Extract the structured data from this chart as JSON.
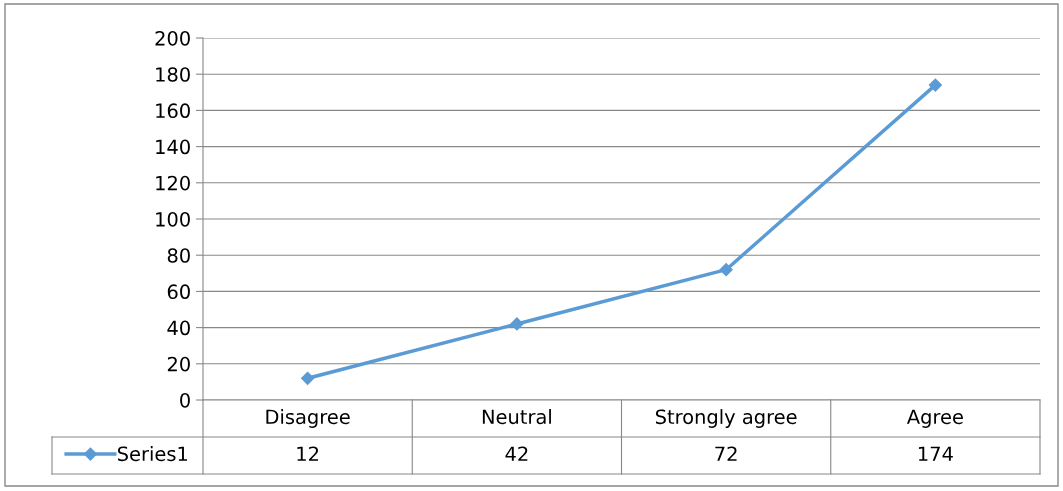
{
  "chart_data": {
    "type": "line",
    "categories": [
      "Disagree",
      "Neutral",
      "Strongly agree",
      "Agree"
    ],
    "series": [
      {
        "name": "Series1",
        "color": "#5b9bd5",
        "values": [
          12,
          42,
          72,
          174
        ]
      }
    ],
    "ylim": [
      0,
      200
    ],
    "yticks": [
      0,
      20,
      40,
      60,
      80,
      100,
      120,
      140,
      160,
      180,
      200
    ],
    "grid": "y",
    "marker": "diamond",
    "line_style": "solid",
    "legend": "bottom",
    "data_labels": true
  }
}
